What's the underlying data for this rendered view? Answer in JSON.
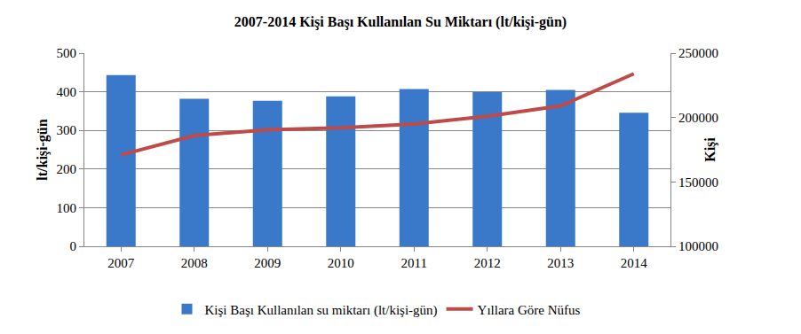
{
  "chart_data": {
    "type": "bar",
    "title": "2007-2014 Kişi Başı Kullanılan Su Miktarı (lt/kişi-gün)",
    "categories": [
      "2007",
      "2008",
      "2009",
      "2010",
      "2011",
      "2012",
      "2013",
      "2014"
    ],
    "series": [
      {
        "name": "Kişi Başı Kullanılan su miktarı (lt/kişi-gün)",
        "type": "bar",
        "color": "#3a78c9",
        "values": [
          443,
          382,
          377,
          388,
          407,
          399,
          405,
          346
        ]
      },
      {
        "name": "Yıllara Göre Nüfus",
        "type": "line",
        "color": "#be4b48",
        "axis": "y2",
        "values": [
          171000,
          186000,
          190500,
          192000,
          195000,
          201000,
          209000,
          234000
        ]
      }
    ],
    "y_label": "lt/kişi-gün",
    "y2_label": "Kişi",
    "ylim": [
      0,
      500
    ],
    "yticks": [
      0,
      100,
      200,
      300,
      400,
      500
    ],
    "y2lim": [
      100000,
      250000
    ],
    "y2ticks": [
      100000,
      150000,
      200000,
      250000
    ],
    "grid": true,
    "legend": "bottom"
  }
}
